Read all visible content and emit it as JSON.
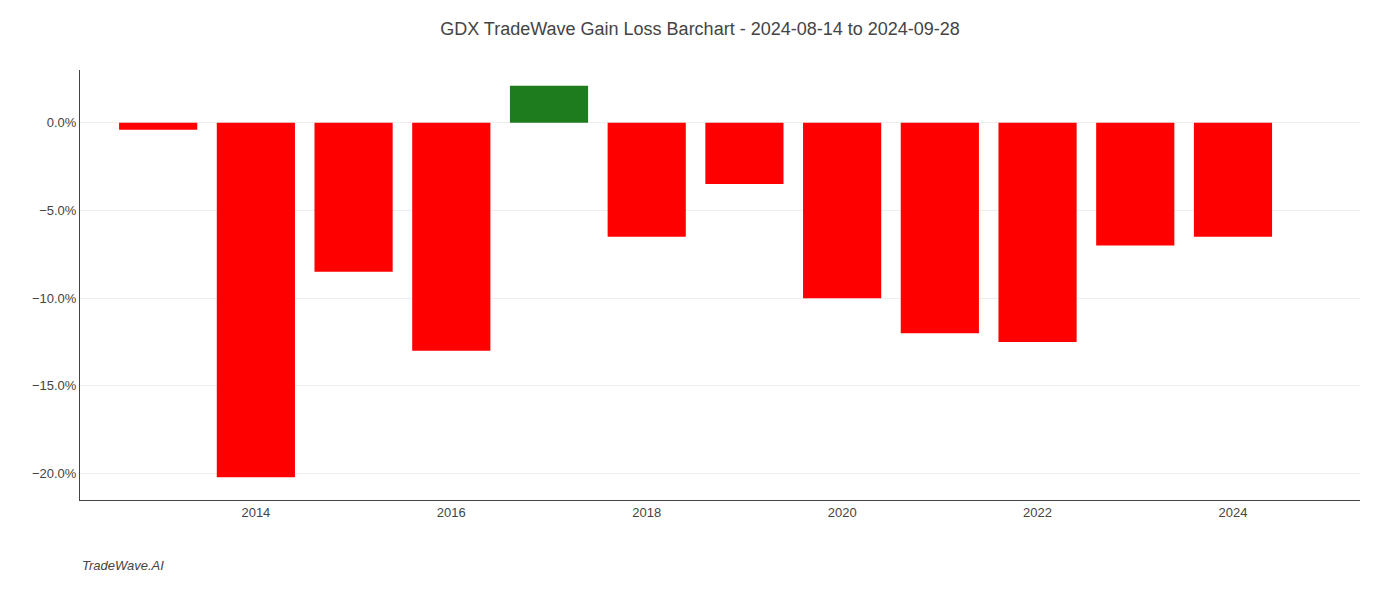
{
  "chart_data": {
    "type": "bar",
    "title": "GDX TradeWave Gain Loss Barchart - 2024-08-14 to 2024-09-28",
    "annotations": [
      "TradeWave.AI"
    ],
    "x": [
      2013,
      2014,
      2015,
      2016,
      2017,
      2018,
      2019,
      2020,
      2021,
      2022,
      2023,
      2024
    ],
    "values": [
      -0.4,
      -20.2,
      -8.5,
      -13.0,
      2.1,
      -6.5,
      -3.5,
      -10.0,
      -12.0,
      -12.5,
      -7.0,
      -6.5
    ],
    "colors": [
      "#ff0000",
      "#ff0000",
      "#ff0000",
      "#ff0000",
      "#1e7b1e",
      "#ff0000",
      "#ff0000",
      "#ff0000",
      "#ff0000",
      "#ff0000",
      "#ff0000",
      "#ff0000"
    ],
    "xlim": [
      2012.2,
      2025.3
    ],
    "xticks": [
      2014,
      2016,
      2018,
      2020,
      2022,
      2024
    ],
    "ylim": [
      -21.5,
      3.0
    ],
    "yticks": [
      {
        "value": 0.0,
        "label": "0.0%"
      },
      {
        "value": -5.0,
        "label": "−5.0%"
      },
      {
        "value": -10.0,
        "label": "−10.0%"
      },
      {
        "value": -15.0,
        "label": "−15.0%"
      },
      {
        "value": -20.0,
        "label": "−20.0%"
      }
    ],
    "grid": true
  }
}
